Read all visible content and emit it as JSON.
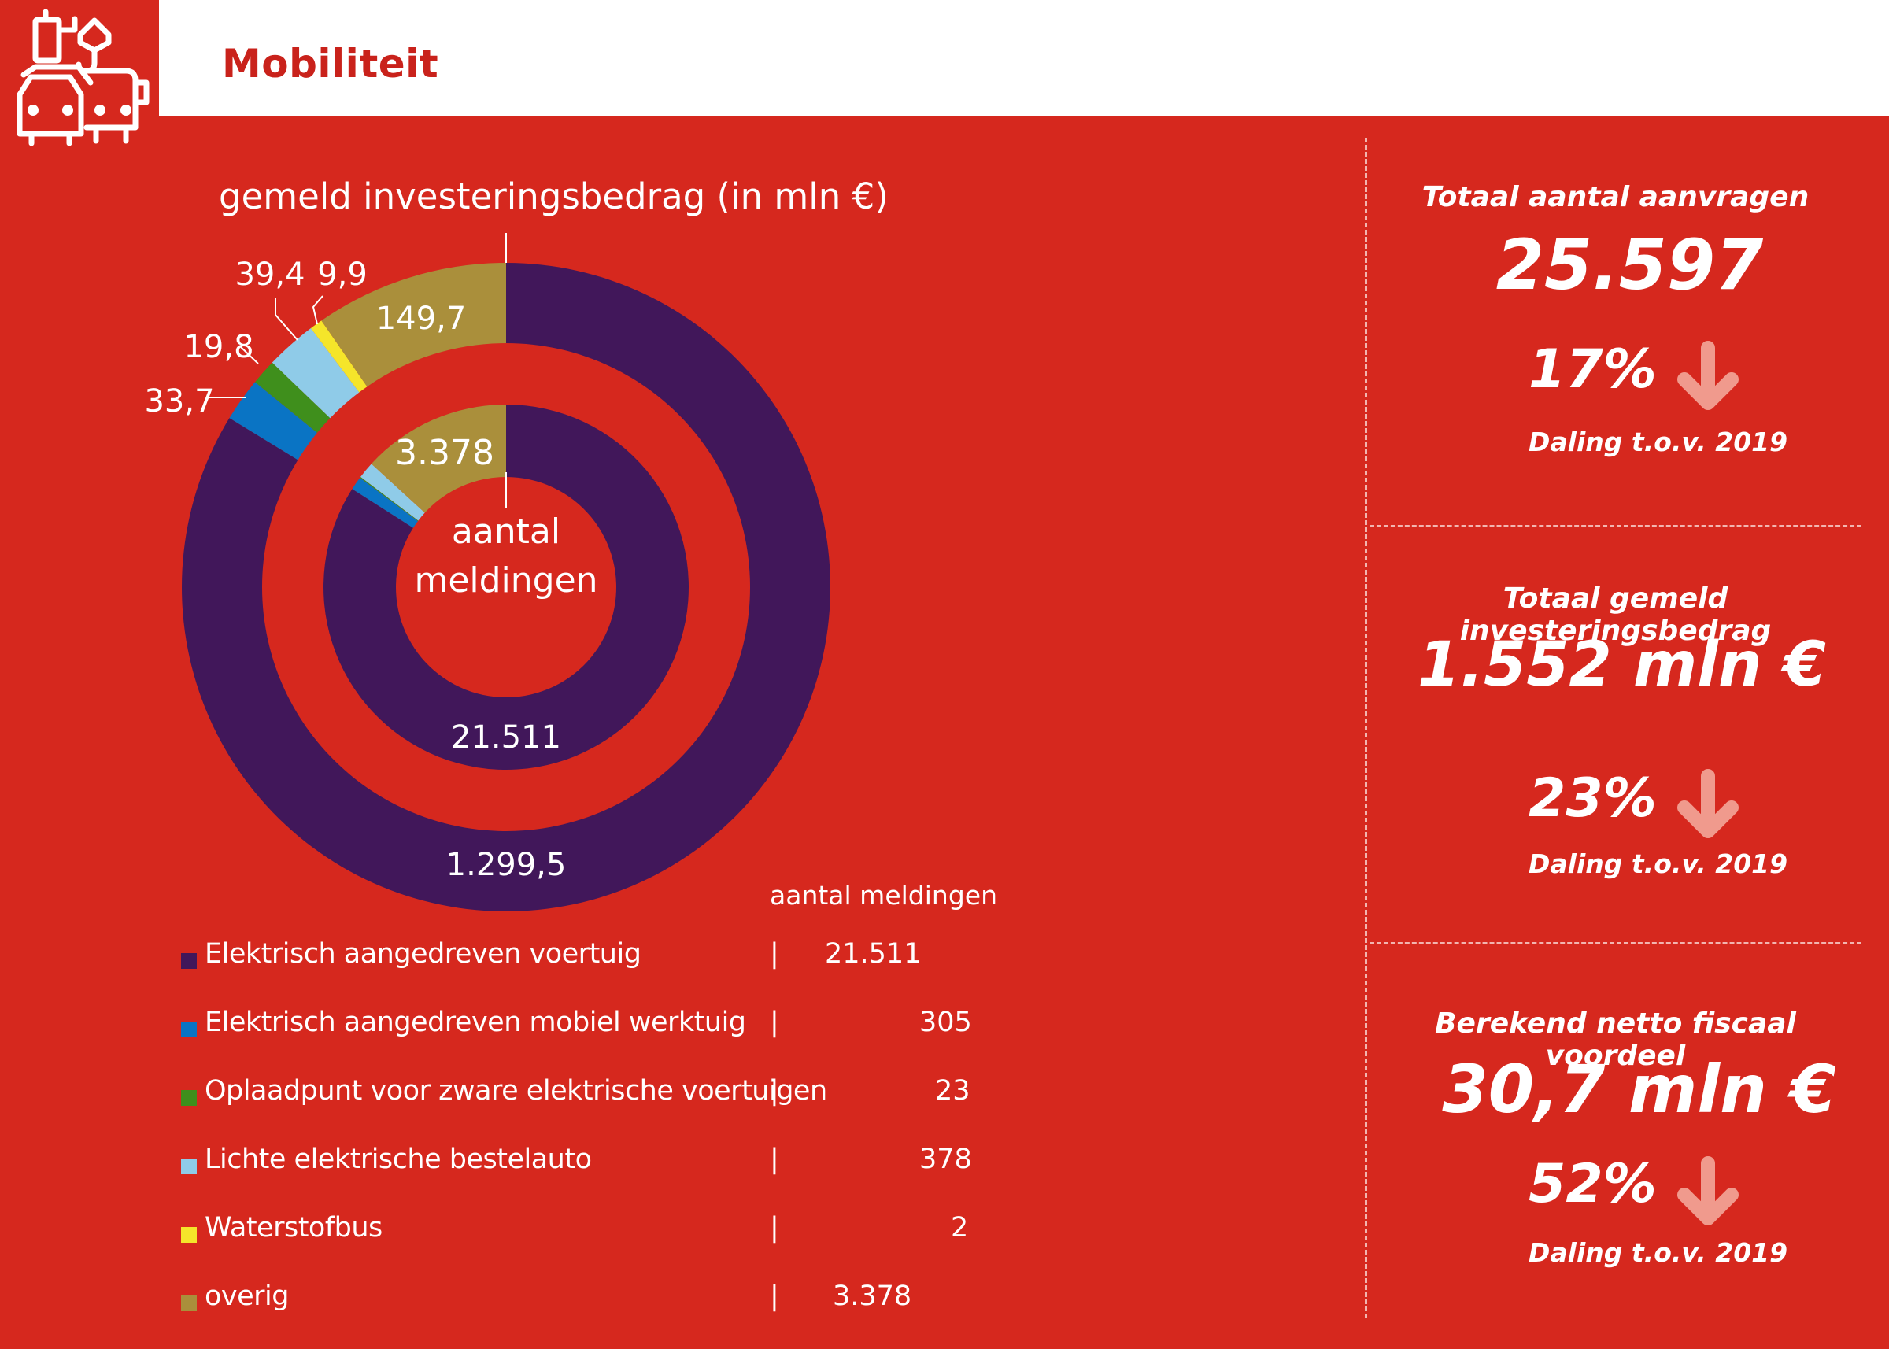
{
  "header": {
    "title": "Mobiliteit",
    "icon": "mobility-icon"
  },
  "chart_data": {
    "type": "pie",
    "title": "gemeld investeringsbedrag (in mln €)",
    "center_label": "aantal meldingen",
    "legend_header": "aantal meldingen",
    "categories": [
      "Elektrisch aangedreven voertuig",
      "Elektrisch aangedreven mobiel werktuig",
      "Oplaadpunt voor zware elektrische voertuigen",
      "Lichte elektrische bestelauto",
      "Waterstofbus",
      "overig"
    ],
    "colors": [
      "#41175a",
      "#0a74c4",
      "#3f8f1c",
      "#8fcbe8",
      "#f5e52a",
      "#aa8f3b"
    ],
    "series": [
      {
        "name": "gemeld investeringsbedrag (in mln €)",
        "ring": "outer",
        "values": [
          1299.5,
          33.7,
          19.8,
          39.4,
          9.9,
          149.7
        ],
        "labels": [
          "1.299,5",
          "33,7",
          "19,8",
          "39,4",
          "9,9",
          "149,7"
        ]
      },
      {
        "name": "aantal meldingen",
        "ring": "inner",
        "values": [
          21511,
          305,
          23,
          378,
          2,
          3378
        ],
        "labels": [
          "21.511",
          "305",
          "23",
          "378",
          "2",
          "3.378"
        ]
      }
    ]
  },
  "panels": [
    {
      "title": "Totaal aantal aanvragen",
      "value": "25.597",
      "pct": "17%",
      "note": "Daling t.o.v. 2019"
    },
    {
      "title": "Totaal gemeld investeringsbedrag",
      "value": "1.552 mln €",
      "pct": "23%",
      "note": "Daling t.o.v. 2019"
    },
    {
      "title": "Berekend netto fiscaal voordeel",
      "value": "30,7 mln €",
      "pct": "52%",
      "note": "Daling t.o.v. 2019"
    }
  ],
  "legend_separator": "|",
  "arrow_icon": "arrow-down-icon",
  "arrow_color": "#f09a8d"
}
